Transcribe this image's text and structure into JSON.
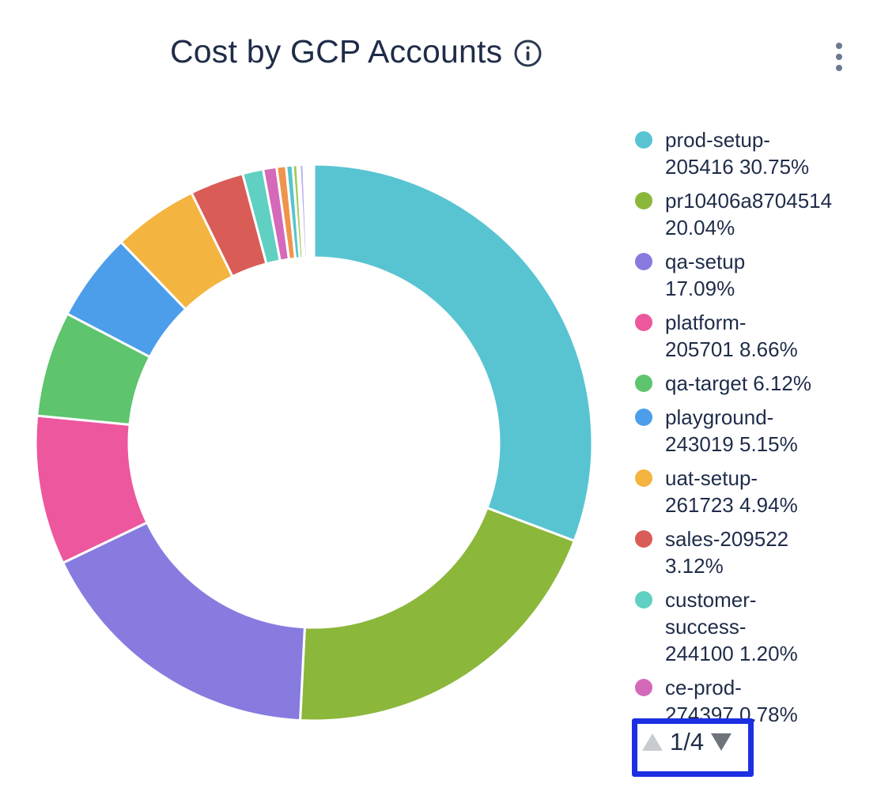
{
  "header": {
    "title": "Cost by GCP Accounts",
    "info_icon": "info-circle",
    "menu_icon": "kebab-vertical"
  },
  "colors": {
    "text": "#1f2c49",
    "highlight_box": "#1c2fe2",
    "pager_up_disabled": "#c8ccd0",
    "pager_down_enabled": "#6e747b",
    "kebab_dots": "#6b7890"
  },
  "chart_data": {
    "type": "donut",
    "title": "Cost by GCP Accounts",
    "unit": "%",
    "start_angle_deg": 0,
    "direction": "clockwise",
    "legend_position": "right",
    "inner_radius_ratio": 0.665,
    "segments": [
      {
        "name": "prod-setup-205416",
        "pct": 30.75,
        "color": "#59c4d1"
      },
      {
        "name": "pr10406a8704514",
        "pct": 20.04,
        "color": "#8bb73a"
      },
      {
        "name": "qa-setup",
        "pct": 17.09,
        "color": "#877be0"
      },
      {
        "name": "platform-205701",
        "pct": 8.66,
        "color": "#ec579d"
      },
      {
        "name": "qa-target",
        "pct": 6.12,
        "color": "#5ec46d"
      },
      {
        "name": "playground-243019",
        "pct": 5.15,
        "color": "#4c9eea"
      },
      {
        "name": "uat-setup-261723",
        "pct": 4.94,
        "color": "#d95c57"
      },
      {
        "name": "sales-209522",
        "pct": 3.12,
        "color": "#d95c57"
      },
      {
        "name": "customer-success-244100",
        "pct": 1.2,
        "color": "#5fd0c2"
      },
      {
        "name": "ce-prod-274397",
        "pct": 0.78,
        "color": "#d469ba"
      },
      {
        "name": "",
        "pct": 0.55,
        "color": "#f0944d"
      },
      {
        "name": "",
        "pct": 0.38,
        "color": "#56c5cd"
      },
      {
        "name": "",
        "pct": 0.27,
        "color": "#a3c95a"
      },
      {
        "name": "",
        "pct": 0.13,
        "color": "#56c5cd"
      },
      {
        "name": "",
        "pct": 0.22,
        "color": "#b5a8ea"
      }
    ]
  },
  "legend": {
    "items": [
      {
        "color": "#59c4d1",
        "label": "prod-setup-205416 30.75%",
        "lines": [
          "prod-setup-",
          "205416 30.75%"
        ]
      },
      {
        "color": "#8bb73a",
        "label": "pr10406a8704514 20.04%",
        "lines": [
          "pr10406a8704514",
          "20.04%"
        ]
      },
      {
        "color": "#877be0",
        "label": "qa-setup 17.09%",
        "lines": [
          "qa-setup",
          "17.09%"
        ]
      },
      {
        "color": "#ec579d",
        "label": "platform-205701 8.66%",
        "lines": [
          "platform-",
          "205701 8.66%"
        ]
      },
      {
        "color": "#5ec46d",
        "label": "qa-target 6.12%",
        "lines": [
          "qa-target 6.12%"
        ]
      },
      {
        "color": "#4c9eea",
        "label": "playground-243019 5.15%",
        "lines": [
          "playground-",
          "243019 5.15%"
        ]
      },
      {
        "color": "#f3b440",
        "label": "uat-setup-261723 4.94%",
        "lines": [
          "uat-setup-",
          "261723 4.94%"
        ]
      },
      {
        "color": "#d95c57",
        "label": "sales-209522 3.12%",
        "lines": [
          "sales-209522",
          "3.12%"
        ]
      },
      {
        "color": "#5fd0c2",
        "label": "customer-success-244100 1.20%",
        "lines": [
          "customer-",
          "success-",
          "244100 1.20%"
        ]
      },
      {
        "color": "#d469ba",
        "label": "ce-prod-274397 0.78%",
        "lines": [
          "ce-prod-",
          "274397 0.78%"
        ]
      }
    ],
    "pager": {
      "label": "1/4",
      "up_enabled": false,
      "down_enabled": true
    }
  },
  "donut_fix": {
    "uat_color": "#f3b440"
  }
}
